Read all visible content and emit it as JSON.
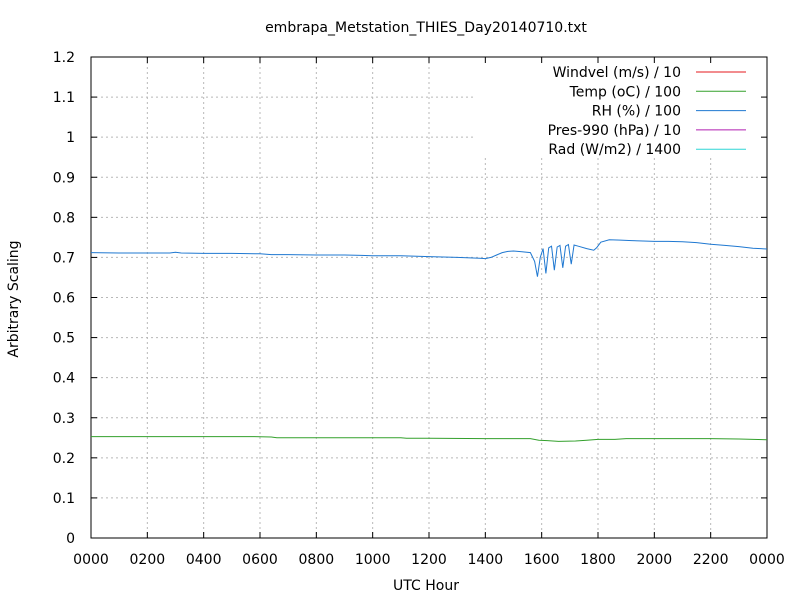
{
  "chart_data": {
    "type": "line",
    "title": "embrapa_Metstation_THIES_Day20140710.txt",
    "xlabel": "UTC Hour",
    "ylabel": "Arbitrary Scaling",
    "xlim": [
      0,
      24
    ],
    "ylim": [
      0,
      1.2
    ],
    "grid": true,
    "legend_position": "top-right",
    "x_ticks": [
      0,
      2,
      4,
      6,
      8,
      10,
      12,
      14,
      16,
      18,
      20,
      22,
      24
    ],
    "x_tick_labels": [
      "0000",
      "0200",
      "0400",
      "0600",
      "0800",
      "1000",
      "1200",
      "1400",
      "1600",
      "1800",
      "2000",
      "2200",
      "0000"
    ],
    "y_ticks": [
      0,
      0.1,
      0.2,
      0.3,
      0.4,
      0.5,
      0.6,
      0.7,
      0.8,
      0.9,
      1.0,
      1.1,
      1.2
    ],
    "y_tick_labels": [
      "0",
      "0.1",
      "0.2",
      "0.3",
      "0.4",
      "0.5",
      "0.6",
      "0.7",
      "0.8",
      "0.9",
      "1",
      "1.1",
      "1.2"
    ],
    "series": [
      {
        "name": "Windvel (m/s) / 10",
        "color": "#e41a1c",
        "points": []
      },
      {
        "name": "Temp (oC) / 100",
        "color": "#33a02c",
        "points": [
          [
            0.0,
            0.253
          ],
          [
            2.0,
            0.253
          ],
          [
            4.0,
            0.253
          ],
          [
            5.8,
            0.253
          ],
          [
            6.4,
            0.252
          ],
          [
            6.6,
            0.25
          ],
          [
            8.0,
            0.25
          ],
          [
            10.0,
            0.25
          ],
          [
            11.0,
            0.25
          ],
          [
            11.2,
            0.249
          ],
          [
            12.0,
            0.249
          ],
          [
            14.0,
            0.248
          ],
          [
            15.0,
            0.248
          ],
          [
            15.6,
            0.248
          ],
          [
            15.9,
            0.244
          ],
          [
            16.2,
            0.243
          ],
          [
            16.6,
            0.241
          ],
          [
            17.2,
            0.242
          ],
          [
            17.6,
            0.244
          ],
          [
            18.0,
            0.246
          ],
          [
            18.6,
            0.246
          ],
          [
            19.0,
            0.248
          ],
          [
            20.0,
            0.248
          ],
          [
            22.0,
            0.248
          ],
          [
            23.0,
            0.247
          ],
          [
            24.0,
            0.245
          ]
        ]
      },
      {
        "name": "RH (%) / 100",
        "color": "#1f78d1",
        "points": [
          [
            0.0,
            0.712
          ],
          [
            1.0,
            0.711
          ],
          [
            2.0,
            0.711
          ],
          [
            2.8,
            0.711
          ],
          [
            3.0,
            0.713
          ],
          [
            3.2,
            0.711
          ],
          [
            4.0,
            0.71
          ],
          [
            5.0,
            0.71
          ],
          [
            6.0,
            0.709
          ],
          [
            6.4,
            0.707
          ],
          [
            7.0,
            0.707
          ],
          [
            8.0,
            0.706
          ],
          [
            9.0,
            0.706
          ],
          [
            9.6,
            0.705
          ],
          [
            10.0,
            0.704
          ],
          [
            11.0,
            0.704
          ],
          [
            12.0,
            0.702
          ],
          [
            13.0,
            0.7
          ],
          [
            13.8,
            0.698
          ],
          [
            14.0,
            0.697
          ],
          [
            14.2,
            0.7
          ],
          [
            14.4,
            0.706
          ],
          [
            14.6,
            0.712
          ],
          [
            14.8,
            0.715
          ],
          [
            15.0,
            0.716
          ],
          [
            15.3,
            0.714
          ],
          [
            15.6,
            0.712
          ],
          [
            15.75,
            0.69
          ],
          [
            15.85,
            0.652
          ],
          [
            15.95,
            0.7
          ],
          [
            16.05,
            0.722
          ],
          [
            16.15,
            0.66
          ],
          [
            16.25,
            0.724
          ],
          [
            16.35,
            0.728
          ],
          [
            16.45,
            0.668
          ],
          [
            16.55,
            0.726
          ],
          [
            16.65,
            0.73
          ],
          [
            16.75,
            0.674
          ],
          [
            16.85,
            0.728
          ],
          [
            16.95,
            0.732
          ],
          [
            17.05,
            0.683
          ],
          [
            17.15,
            0.731
          ],
          [
            17.3,
            0.728
          ],
          [
            17.6,
            0.722
          ],
          [
            17.85,
            0.718
          ],
          [
            17.95,
            0.724
          ],
          [
            18.1,
            0.738
          ],
          [
            18.4,
            0.744
          ],
          [
            18.8,
            0.743
          ],
          [
            19.2,
            0.742
          ],
          [
            19.6,
            0.741
          ],
          [
            20.0,
            0.74
          ],
          [
            20.5,
            0.74
          ],
          [
            21.0,
            0.739
          ],
          [
            21.5,
            0.737
          ],
          [
            22.0,
            0.733
          ],
          [
            22.5,
            0.73
          ],
          [
            23.0,
            0.727
          ],
          [
            23.5,
            0.723
          ],
          [
            24.0,
            0.721
          ]
        ]
      },
      {
        "name": "Pres-990 (hPa) / 10",
        "color": "#b01fb0",
        "points": []
      },
      {
        "name": "Rad (W/m2) / 1400",
        "color": "#2fd6d6",
        "points": []
      }
    ]
  }
}
